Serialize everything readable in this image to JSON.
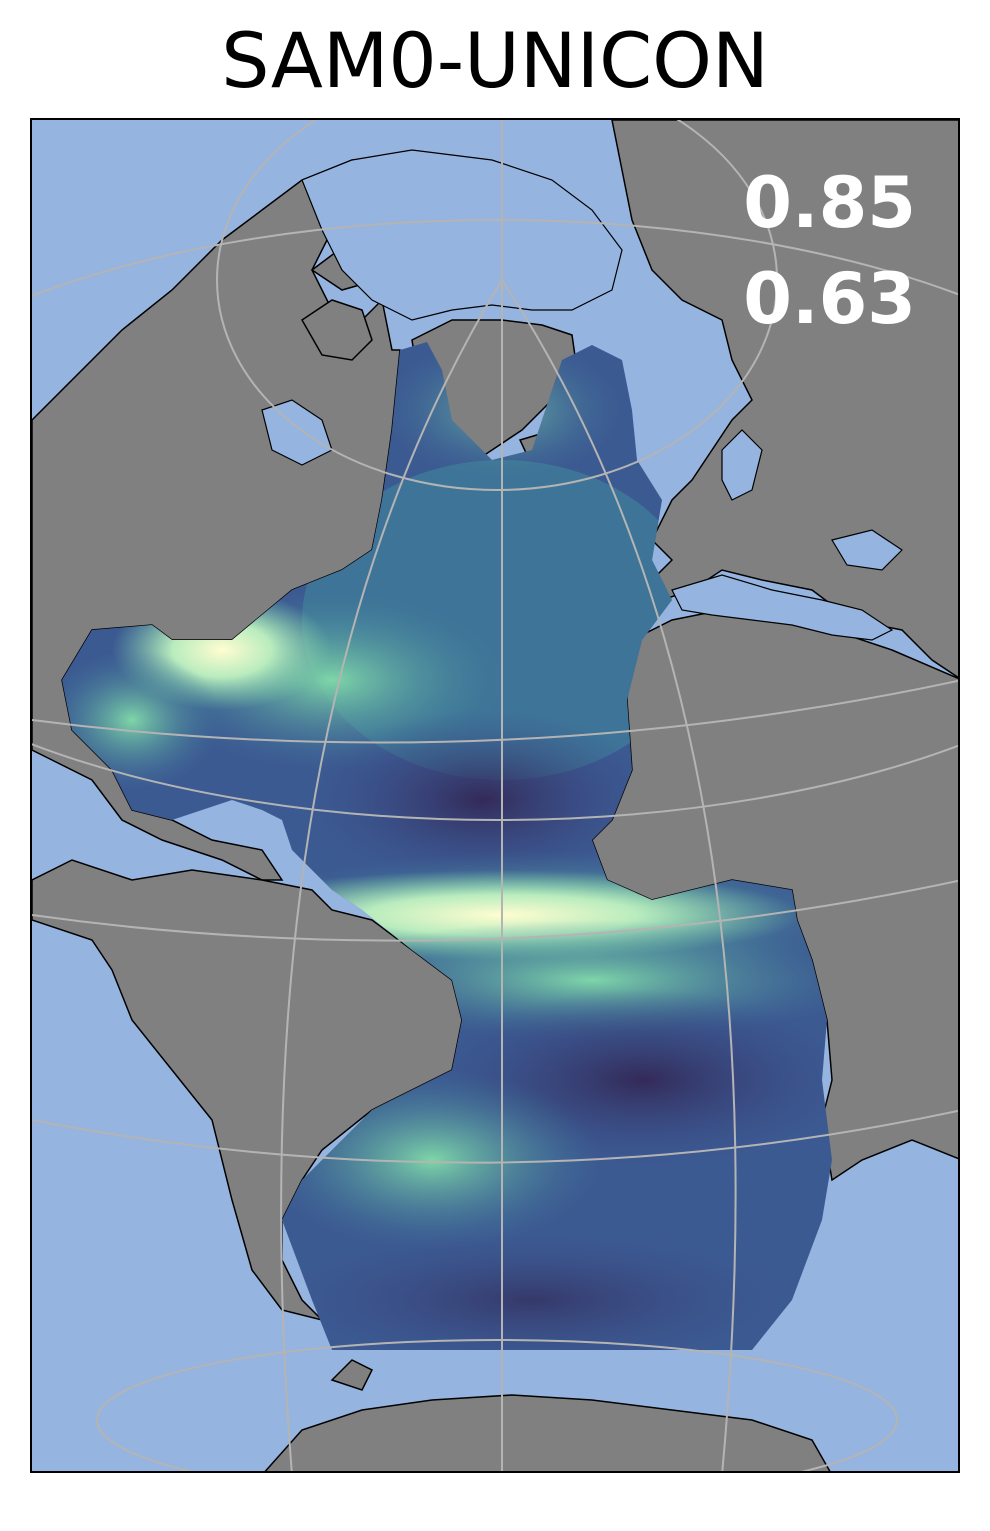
{
  "title": "SAM0-UNICON",
  "stats": {
    "value1": "0.85",
    "value2": "0.63"
  },
  "colors": {
    "ocean": "#95b4e0",
    "land": "#808080",
    "coast": "#000000",
    "grid": "#b4b4b4",
    "field_low": "#3a3163",
    "field_mid": "#3e7a9a",
    "field_high": "#7fd6a8",
    "field_max": "#fffdd0"
  }
}
